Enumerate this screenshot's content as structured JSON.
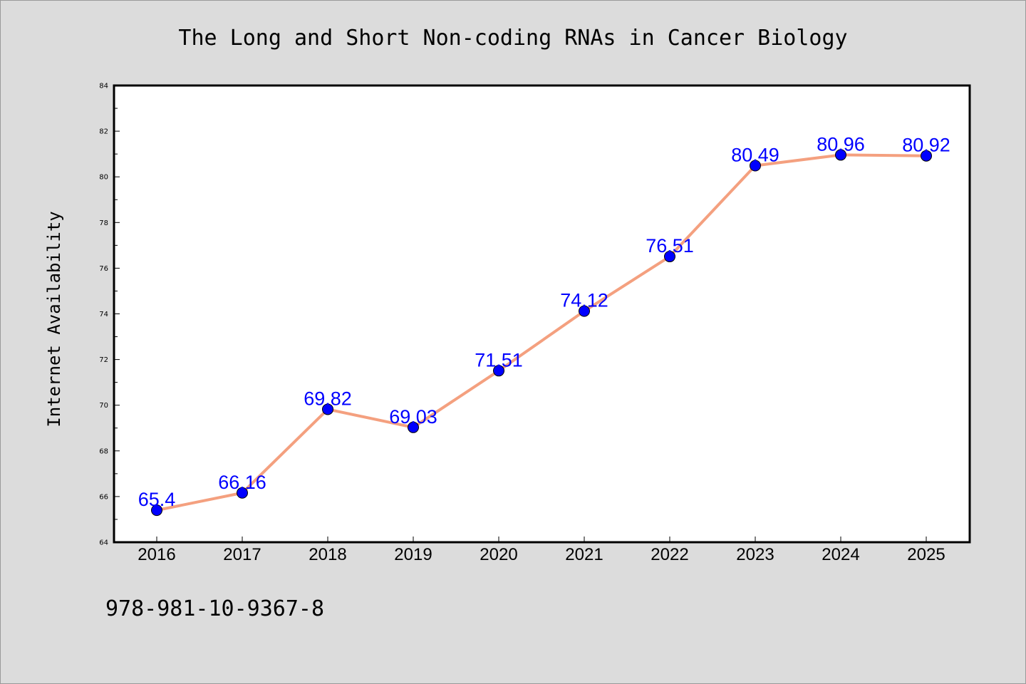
{
  "chart_data": {
    "type": "line",
    "title": "The Long and Short Non-coding RNAs in Cancer Biology",
    "xlabel": "",
    "ylabel": "Internet Availability",
    "categories": [
      "2016",
      "2017",
      "2018",
      "2019",
      "2020",
      "2021",
      "2022",
      "2023",
      "2024",
      "2025"
    ],
    "series": [
      {
        "values": [
          65.4,
          66.16,
          69.82,
          69.03,
          71.51,
          74.12,
          76.51,
          80.49,
          80.96,
          80.92
        ],
        "data_labels": [
          "65.4",
          "66.16",
          "69.82",
          "69.03",
          "71.51",
          "74.12",
          "76.51",
          "80.49",
          "80.96",
          "80.92"
        ]
      }
    ],
    "ylim": [
      64,
      84
    ],
    "yticks": [
      "64",
      "66",
      "68",
      "70",
      "72",
      "74",
      "76",
      "78",
      "80",
      "82",
      "84"
    ],
    "grid": false,
    "legend": "none",
    "colors": {
      "line": "#f4a07f",
      "marker": "#0000ff",
      "label": "#0000ff",
      "background": "#dcdcdc",
      "plot_background": "#ffffff"
    }
  },
  "footer": {
    "isbn": "978-981-10-9367-8"
  }
}
